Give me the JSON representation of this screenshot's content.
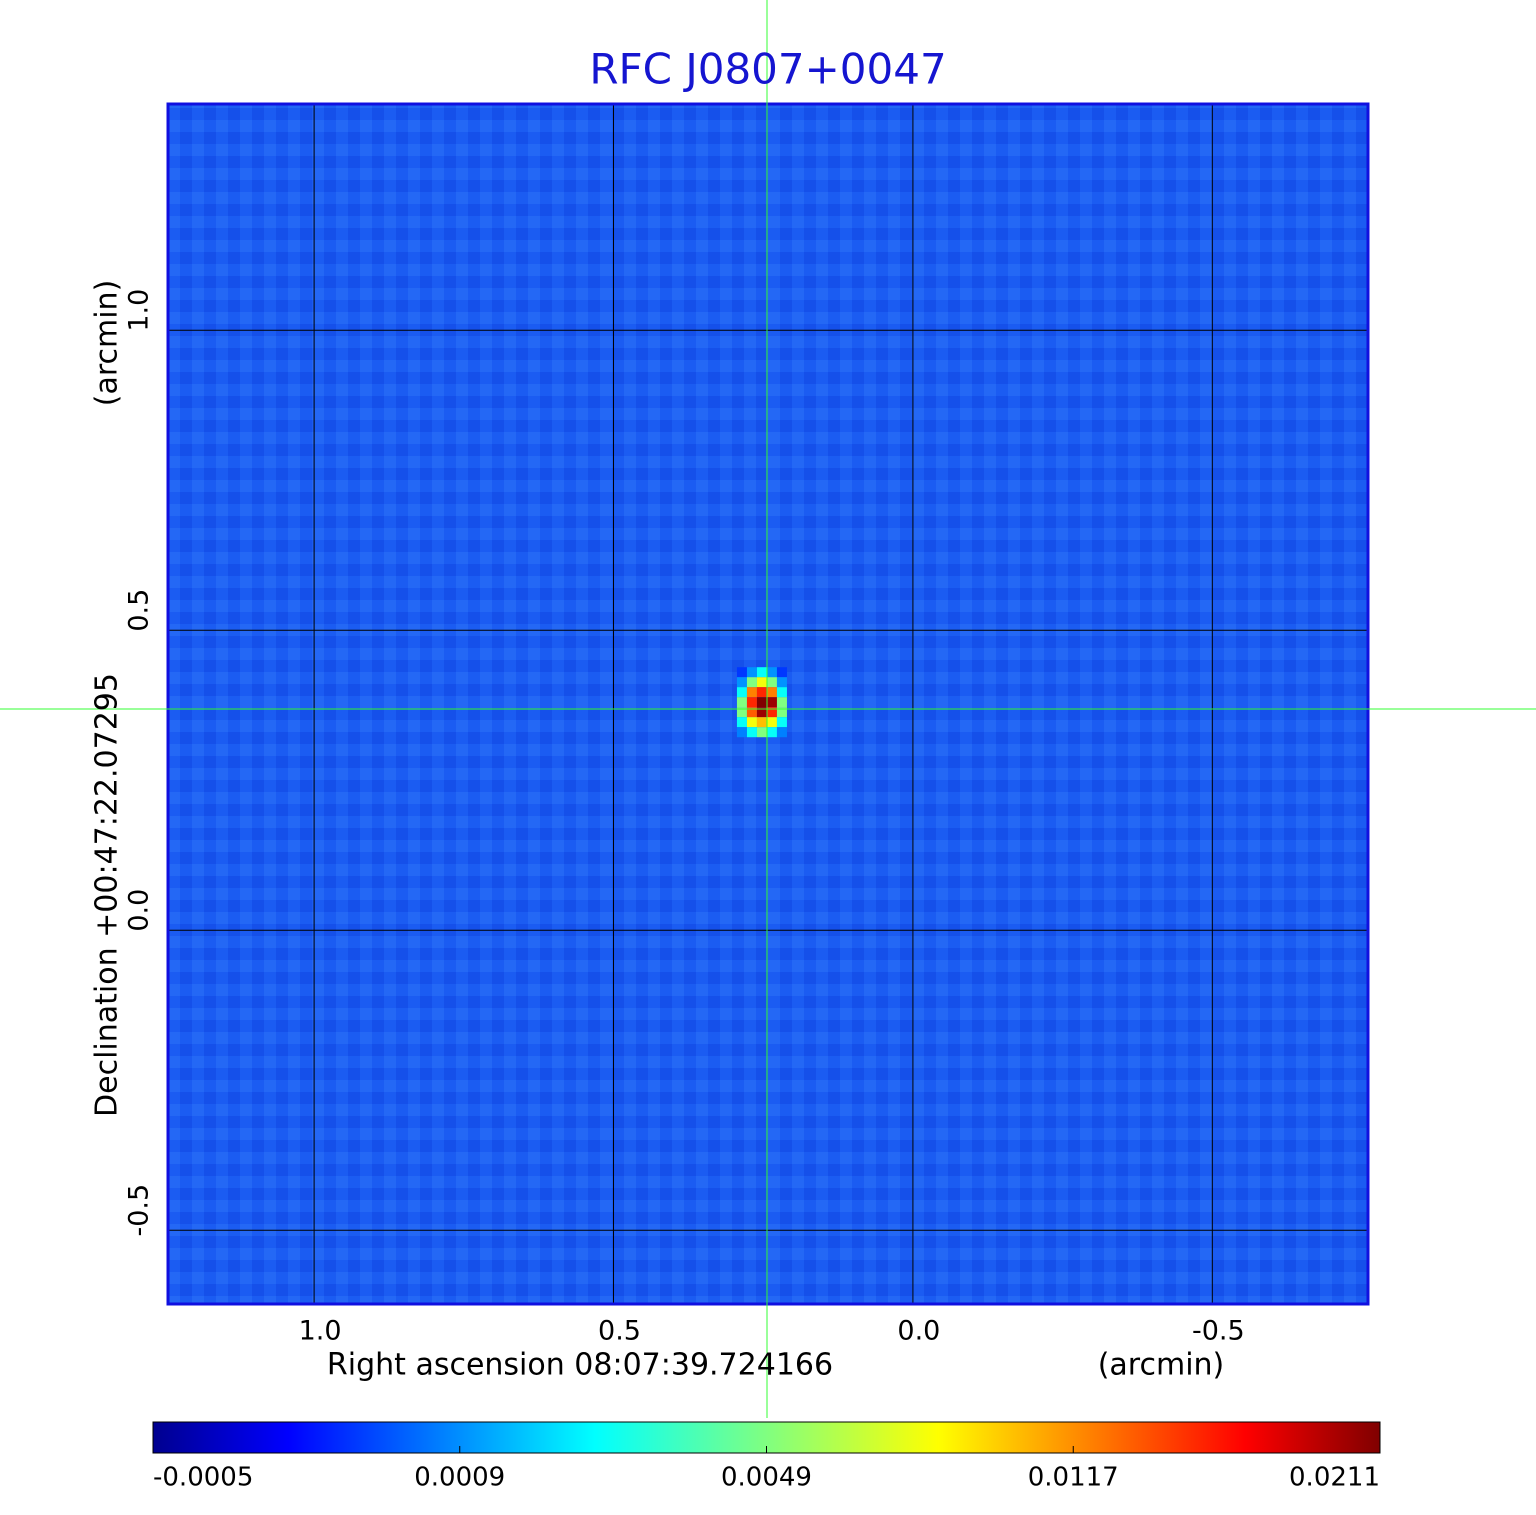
{
  "chart_data": {
    "type": "heatmap",
    "title": "RFC J0807+0047",
    "x_label": "Right ascension  08:07:39.724166",
    "x_unit": "(arcmin)",
    "y_label": "Declination  +00:47:22.07295",
    "y_unit": "(arcmin)",
    "xlim": [
      1.244,
      -0.76
    ],
    "ylim": [
      -0.623,
      1.377
    ],
    "xticks": [
      {
        "value": 1,
        "label": "1.0"
      },
      0.5,
      {
        "value": 0,
        "label": "0.0"
      },
      -0.5
    ],
    "yticks": [
      {
        "value": 1,
        "label": "1.0"
      },
      0.5,
      {
        "value": 0,
        "label": "0.0"
      },
      -0.5
    ],
    "grid": true,
    "colormap": "jet",
    "colorbar_ticks": [
      -0.0005,
      0.0009,
      0.0049,
      0.0117,
      0.0211
    ],
    "pixels": {
      "size": 0.0167,
      "x": [
        0.2855,
        0.2688,
        0.2521,
        0.2354,
        0.2187
      ],
      "y": [
        0.43,
        0.4133,
        0.3967,
        0.38,
        0.3633,
        0.3467,
        0.33
      ],
      "values": [
        [
          0.0005,
          0.0012,
          0.003,
          0.0012,
          0.0005
        ],
        [
          0.0012,
          0.0049,
          0.008,
          0.0049,
          0.0012
        ],
        [
          0.003,
          0.0117,
          0.015,
          0.0117,
          0.003
        ],
        [
          0.0049,
          0.015,
          0.0211,
          0.02,
          0.0049
        ],
        [
          0.0049,
          0.013,
          0.02,
          0.015,
          0.0049
        ],
        [
          0.003,
          0.008,
          0.01,
          0.008,
          0.003
        ],
        [
          0.0009,
          0.003,
          0.0049,
          0.003,
          0.0009
        ]
      ]
    }
  }
}
